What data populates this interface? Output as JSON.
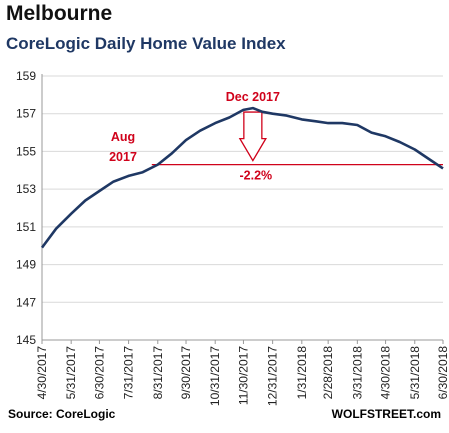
{
  "header": {
    "title": "Melbourne",
    "subtitle": "CoreLogic Daily Home Value Index"
  },
  "footer": {
    "source": "Source: CoreLogic",
    "brand": "WOLFSTREET.com"
  },
  "colors": {
    "line": "#1f3864",
    "annotation": "#d0021b",
    "grid": "#d9d9d9"
  },
  "chart_data": {
    "type": "line",
    "title": "CoreLogic Daily Home Value Index",
    "xlabel": "",
    "ylabel": "",
    "ylim": [
      145,
      159
    ],
    "y_ticks": [
      145,
      147,
      149,
      151,
      153,
      155,
      157,
      159
    ],
    "grid": "horizontal",
    "x_tick_labels": [
      "4/30/2017",
      "5/31/2017",
      "6/30/2017",
      "7/31/2017",
      "8/31/2017",
      "9/30/2017",
      "10/31/2017",
      "11/30/2017",
      "12/31/2017",
      "1/31/2018",
      "2/28/2018",
      "3/31/2018",
      "4/30/2018",
      "5/31/2018",
      "6/30/2018"
    ],
    "series": [
      {
        "x": [
          "2017-04-30",
          "2017-05-15",
          "2017-05-31",
          "2017-06-15",
          "2017-06-30",
          "2017-07-15",
          "2017-07-31",
          "2017-08-15",
          "2017-08-31",
          "2017-09-15",
          "2017-09-30",
          "2017-10-15",
          "2017-10-31",
          "2017-11-15",
          "2017-11-30",
          "2017-12-10",
          "2017-12-20",
          "2017-12-31",
          "2018-01-15",
          "2018-01-31",
          "2018-02-15",
          "2018-02-28",
          "2018-03-15",
          "2018-03-31",
          "2018-04-15",
          "2018-04-30",
          "2018-05-15",
          "2018-05-31",
          "2018-06-15",
          "2018-06-30"
        ],
        "y": [
          149.9,
          150.9,
          151.7,
          152.4,
          152.9,
          153.4,
          153.7,
          153.9,
          154.3,
          154.9,
          155.6,
          156.1,
          156.5,
          156.8,
          157.2,
          157.3,
          157.1,
          157.0,
          156.9,
          156.7,
          156.6,
          156.5,
          156.5,
          156.4,
          156.0,
          155.8,
          155.5,
          155.1,
          154.6,
          154.1
        ]
      }
    ],
    "annotations": [
      {
        "text": "Aug",
        "text2": "2017"
      },
      {
        "text": "Dec 2017"
      },
      {
        "text": "-2.2%"
      }
    ]
  }
}
